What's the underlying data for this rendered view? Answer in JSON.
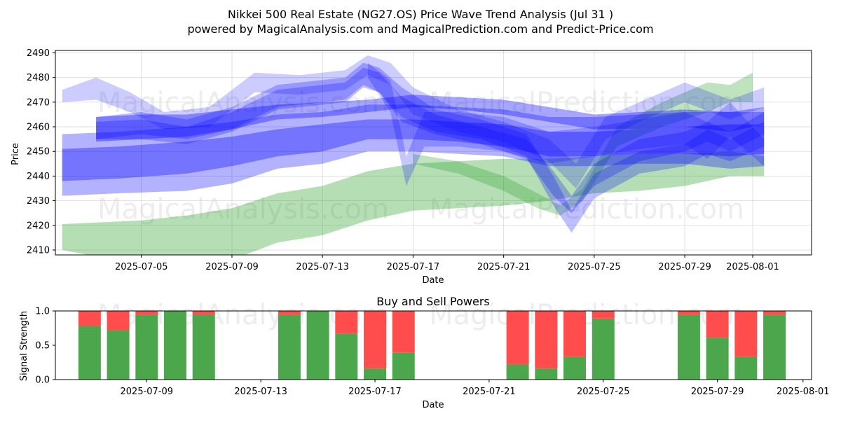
{
  "title_line1": "Nikkei 500 Real Estate (NG27.OS) Price Wave Trend Analysis (Jul 31 )",
  "title_line2": "powered by MagicalAnalysis.com and MagicalPrediction.com and Predict-Price.com",
  "watermarks": [
    "MagicalAnalysis.com",
    "MagicalPrediction.com"
  ],
  "colors": {
    "blue": "#0000ff",
    "green": "#2ca02c",
    "buy": "#4ca64c",
    "sell": "#ff4c4c",
    "grid": "#d9d9d9"
  },
  "chart_data": [
    {
      "type": "area",
      "name": "price-wave",
      "xlabel": "Date",
      "ylabel": "Price",
      "ylim": [
        2408,
        2491
      ],
      "xlim_days": [
        -1.8,
        31.6
      ],
      "date_origin": "2025-07-03",
      "yticks": [
        2410,
        2420,
        2430,
        2440,
        2450,
        2460,
        2470,
        2480,
        2490
      ],
      "xticks": [
        {
          "day": 2,
          "label": "2025-07-05"
        },
        {
          "day": 6,
          "label": "2025-07-09"
        },
        {
          "day": 10,
          "label": "2025-07-13"
        },
        {
          "day": 14,
          "label": "2025-07-17"
        },
        {
          "day": 18,
          "label": "2025-07-21"
        },
        {
          "day": 22,
          "label": "2025-07-25"
        },
        {
          "day": 26,
          "label": "2025-07-29"
        },
        {
          "day": 29,
          "label": "2025-08-01"
        }
      ],
      "grid": true,
      "series": [
        {
          "name": "green band",
          "color": "green",
          "opacity": 0.35,
          "x": [
            -1.5,
            2,
            4,
            6,
            8,
            10,
            12,
            14,
            16,
            18,
            20,
            22,
            24,
            26,
            28,
            29.5
          ],
          "upper": [
            2420.5,
            2422,
            2424,
            2427,
            2433,
            2436,
            2442,
            2445,
            2446,
            2447,
            2447,
            2448,
            2449,
            2449,
            2450,
            2448
          ],
          "lower": [
            2410,
            2404,
            2404,
            2406,
            2413,
            2416,
            2422,
            2426,
            2427,
            2428,
            2430,
            2433,
            2434,
            2436,
            2440,
            2440
          ]
        },
        {
          "name": "green band 2",
          "color": "green",
          "opacity": 0.3,
          "x": [
            14,
            16,
            18,
            19.5,
            20.5,
            21.5,
            23,
            25,
            27,
            28,
            29
          ],
          "upper": [
            2449,
            2446,
            2440,
            2433,
            2428,
            2435,
            2460,
            2470,
            2478,
            2477,
            2482
          ],
          "lower": [
            2445,
            2441,
            2434,
            2427,
            2424,
            2430,
            2452,
            2460,
            2466,
            2470,
            2470
          ]
        },
        {
          "name": "wide blue band",
          "color": "blue",
          "opacity": 0.3,
          "x": [
            -1.5,
            1,
            4,
            6,
            8,
            10,
            12,
            14,
            16,
            18,
            20,
            22,
            24,
            26,
            28,
            29.5
          ],
          "upper": [
            2457,
            2458,
            2460,
            2462,
            2465,
            2466,
            2469,
            2469,
            2468,
            2467,
            2464,
            2464,
            2465,
            2466,
            2466,
            2466
          ],
          "lower": [
            2432,
            2433,
            2434,
            2437,
            2443,
            2445,
            2450,
            2450,
            2449,
            2448,
            2444,
            2444,
            2445,
            2445,
            2443,
            2444
          ]
        },
        {
          "name": "core blue band",
          "color": "blue",
          "opacity": 0.35,
          "x": [
            -1.5,
            1,
            4,
            6,
            8,
            10,
            12,
            14,
            16,
            18,
            20,
            22,
            24,
            26,
            28,
            29.5
          ],
          "upper": [
            2451,
            2452,
            2454,
            2456,
            2459,
            2461,
            2463,
            2463,
            2462,
            2461,
            2458,
            2458,
            2459,
            2460,
            2461,
            2461
          ],
          "lower": [
            2438,
            2439,
            2441,
            2444,
            2448,
            2450,
            2455,
            2455,
            2454,
            2452,
            2448,
            2448,
            2449,
            2449,
            2448,
            2449
          ]
        },
        {
          "name": "upper blue band",
          "color": "blue",
          "opacity": 0.35,
          "x": [
            0,
            2,
            4,
            6,
            8,
            10,
            12,
            14,
            16,
            18,
            20,
            22,
            24,
            26,
            28,
            29.5
          ],
          "upper": [
            2464,
            2465,
            2465,
            2467,
            2469,
            2470,
            2471,
            2473,
            2472,
            2471,
            2468,
            2465,
            2466,
            2467,
            2466,
            2468
          ],
          "lower": [
            2454,
            2455,
            2456,
            2459,
            2463,
            2464,
            2466,
            2468,
            2467,
            2465,
            2462,
            2459,
            2459,
            2460,
            2458,
            2461
          ]
        },
        {
          "name": "wave blue 1",
          "color": "blue",
          "opacity": 0.25,
          "x": [
            0,
            2,
            4,
            6,
            8,
            10,
            11,
            11.8,
            12.5,
            13.5,
            15,
            17,
            19,
            20.2,
            21,
            22,
            24,
            26,
            27,
            28,
            29.5
          ],
          "upper": [
            2464,
            2466,
            2463,
            2468,
            2477,
            2479,
            2480,
            2486,
            2484,
            2476,
            2467,
            2463,
            2457,
            2440,
            2426,
            2441,
            2450,
            2453,
            2459,
            2455,
            2462
          ],
          "lower": [
            2455,
            2457,
            2455,
            2459,
            2468,
            2470,
            2471,
            2477,
            2474,
            2464,
            2458,
            2455,
            2448,
            2428,
            2417,
            2431,
            2441,
            2444,
            2449,
            2446,
            2452
          ]
        },
        {
          "name": "wave blue 2",
          "color": "blue",
          "opacity": 0.25,
          "x": [
            0,
            2,
            4,
            6,
            8,
            10,
            11,
            11.8,
            12.5,
            13.5,
            15,
            17,
            19,
            20.2,
            21,
            22,
            24,
            26,
            27,
            28,
            29.5
          ],
          "upper": [
            2462,
            2463,
            2460,
            2466,
            2475,
            2477,
            2478,
            2484,
            2482,
            2472,
            2465,
            2460,
            2455,
            2442,
            2432,
            2445,
            2455,
            2458,
            2462,
            2458,
            2466
          ],
          "lower": [
            2455,
            2455,
            2453,
            2458,
            2467,
            2469,
            2470,
            2476,
            2474,
            2462,
            2457,
            2453,
            2447,
            2432,
            2425,
            2436,
            2446,
            2450,
            2454,
            2450,
            2457
          ]
        },
        {
          "name": "wave blue 3",
          "color": "blue",
          "opacity": 0.2,
          "x": [
            -1.5,
            0,
            1.5,
            3,
            5,
            7,
            9,
            11,
            12,
            13,
            14,
            16,
            18,
            20,
            21.2,
            22.5,
            24,
            26,
            28,
            29.5
          ],
          "upper": [
            2475,
            2480,
            2474,
            2466,
            2468,
            2482,
            2481,
            2483,
            2489,
            2486,
            2476,
            2467,
            2462,
            2455,
            2445,
            2464,
            2470,
            2478,
            2471,
            2476
          ],
          "lower": [
            2470,
            2471,
            2466,
            2459,
            2460,
            2474,
            2473,
            2475,
            2481,
            2477,
            2465,
            2458,
            2454,
            2446,
            2435,
            2455,
            2462,
            2470,
            2463,
            2468
          ]
        },
        {
          "name": "wave blue 4",
          "color": "blue",
          "opacity": 0.22,
          "x": [
            12,
            13,
            13.7,
            14.5,
            16,
            18,
            20,
            22,
            24,
            26,
            27,
            28,
            29.5
          ],
          "upper": [
            2486,
            2479,
            2448,
            2466,
            2466,
            2464,
            2458,
            2460,
            2463,
            2466,
            2462,
            2470,
            2455
          ],
          "lower": [
            2480,
            2466,
            2436,
            2452,
            2452,
            2450,
            2445,
            2448,
            2451,
            2453,
            2447,
            2456,
            2444
          ]
        }
      ]
    },
    {
      "type": "bar",
      "name": "buy-sell-powers",
      "title": "Buy and Sell Powers",
      "xlabel": "Date",
      "ylabel": "Signal Strength",
      "ylim": [
        0,
        1.0
      ],
      "yticks": [
        0.0,
        0.5,
        1.0
      ],
      "date_origin": "2025-07-07",
      "xticks": [
        {
          "day": 2,
          "label": "2025-07-09"
        },
        {
          "day": 6,
          "label": "2025-07-13"
        },
        {
          "day": 10,
          "label": "2025-07-17"
        },
        {
          "day": 14,
          "label": "2025-07-21"
        },
        {
          "day": 18,
          "label": "2025-07-25"
        },
        {
          "day": 22,
          "label": "2025-07-29"
        },
        {
          "day": 25,
          "label": "2025-08-01"
        }
      ],
      "xlim_days": [
        -1.2,
        25.3
      ],
      "days": [
        0,
        1,
        2,
        3,
        4,
        7,
        8,
        9,
        10,
        11,
        15,
        16,
        17,
        18,
        21,
        22,
        23,
        24
      ],
      "buy": [
        0.78,
        0.72,
        0.94,
        1.0,
        0.95,
        0.94,
        1.0,
        0.67,
        0.16,
        0.39,
        0.22,
        0.16,
        0.33,
        0.89,
        0.94,
        0.61,
        0.33,
        0.94
      ],
      "sell": [
        0.22,
        0.28,
        0.06,
        0.0,
        0.05,
        0.06,
        0.0,
        0.33,
        0.84,
        0.61,
        0.78,
        0.84,
        0.67,
        0.11,
        0.06,
        0.39,
        0.67,
        0.06
      ]
    }
  ]
}
